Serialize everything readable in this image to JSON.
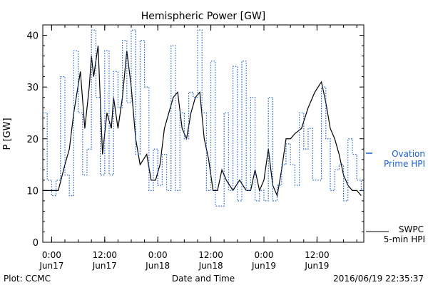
{
  "chart_data": {
    "type": "line",
    "title": "Hemispheric Power [GW]",
    "xlabel": "Date and Time",
    "ylabel": "P [GW]",
    "xlim": [
      "2016-06-16T22:00",
      "2016-06-19T22:35"
    ],
    "ylim": [
      0,
      42
    ],
    "y_ticks": [
      0,
      10,
      20,
      30,
      40
    ],
    "x_ticks": [
      {
        "t": "2016-06-17T00:00",
        "time": "0:00",
        "date": "Jun17"
      },
      {
        "t": "2016-06-17T12:00",
        "time": "12:00",
        "date": "Jun17"
      },
      {
        "t": "2016-06-18T00:00",
        "time": "0:00",
        "date": "Jun18"
      },
      {
        "t": "2016-06-18T12:00",
        "time": "12:00",
        "date": "Jun18"
      },
      {
        "t": "2016-06-19T00:00",
        "time": "0:00",
        "date": "Jun19"
      },
      {
        "t": "2016-06-19T12:00",
        "time": "12:00",
        "date": "Jun19"
      }
    ],
    "grid": false,
    "series": [
      {
        "name": "SWPC 5-min HPI",
        "legend_lines": [
          "SWPC",
          "5-min HPI"
        ],
        "color": "#000000",
        "style": "solid",
        "x": [
          "2016-06-16T22:00",
          "2016-06-16T23:00",
          "2016-06-17T00:00",
          "2016-06-17T01:30",
          "2016-06-17T03:00",
          "2016-06-17T04:00",
          "2016-06-17T05:00",
          "2016-06-17T06:30",
          "2016-06-17T07:30",
          "2016-06-17T08:30",
          "2016-06-17T09:00",
          "2016-06-17T09:30",
          "2016-06-17T10:30",
          "2016-06-17T11:30",
          "2016-06-17T12:30",
          "2016-06-17T13:30",
          "2016-06-17T14:00",
          "2016-06-17T15:00",
          "2016-06-17T16:00",
          "2016-06-17T17:00",
          "2016-06-17T18:00",
          "2016-06-17T19:00",
          "2016-06-17T20:00",
          "2016-06-17T21:30",
          "2016-06-17T22:30",
          "2016-06-17T23:30",
          "2016-06-18T00:30",
          "2016-06-18T01:30",
          "2016-06-18T02:30",
          "2016-06-18T03:30",
          "2016-06-18T04:30",
          "2016-06-18T05:30",
          "2016-06-18T06:30",
          "2016-06-18T07:30",
          "2016-06-18T08:30",
          "2016-06-18T09:30",
          "2016-06-18T10:30",
          "2016-06-18T11:30",
          "2016-06-18T12:30",
          "2016-06-18T13:30",
          "2016-06-18T14:30",
          "2016-06-18T15:30",
          "2016-06-18T17:00",
          "2016-06-18T18:30",
          "2016-06-18T20:00",
          "2016-06-18T21:00",
          "2016-06-18T22:00",
          "2016-06-18T23:00",
          "2016-06-19T00:00",
          "2016-06-19T01:00",
          "2016-06-19T02:00",
          "2016-06-19T03:00",
          "2016-06-19T04:00",
          "2016-06-19T05:00",
          "2016-06-19T06:00",
          "2016-06-19T07:00",
          "2016-06-19T08:30",
          "2016-06-19T10:00",
          "2016-06-19T11:30",
          "2016-06-19T13:00",
          "2016-06-19T14:00",
          "2016-06-19T15:00",
          "2016-06-19T16:00",
          "2016-06-19T17:00",
          "2016-06-19T18:00",
          "2016-06-19T19:00",
          "2016-06-19T20:00",
          "2016-06-19T21:00",
          "2016-06-19T22:00"
        ],
        "y": [
          10,
          10,
          10,
          10,
          15,
          18,
          25,
          33,
          22,
          30,
          36,
          32,
          38,
          17,
          25,
          22,
          28,
          22,
          28,
          37,
          30,
          20,
          15,
          17,
          12,
          12,
          15,
          22,
          25,
          28,
          29,
          22,
          20,
          25,
          28,
          29,
          20,
          16,
          10,
          10,
          14,
          12,
          10,
          12,
          10,
          10,
          14,
          10,
          12,
          18,
          11,
          9,
          14,
          20,
          20,
          21,
          22,
          26,
          29,
          31,
          27,
          22,
          20,
          17,
          13,
          11,
          10,
          10,
          9
        ]
      },
      {
        "name": "Ovation Prime HPI",
        "legend_lines": [
          "Ovation",
          "Prime HPI"
        ],
        "color": "#1a5fd0",
        "style": "dotted-step",
        "x": [
          "2016-06-16T22:00",
          "2016-06-16T23:00",
          "2016-06-17T00:00",
          "2016-06-17T01:00",
          "2016-06-17T02:00",
          "2016-06-17T03:00",
          "2016-06-17T04:00",
          "2016-06-17T05:00",
          "2016-06-17T06:00",
          "2016-06-17T07:00",
          "2016-06-17T08:00",
          "2016-06-17T09:00",
          "2016-06-17T10:00",
          "2016-06-17T11:00",
          "2016-06-17T12:00",
          "2016-06-17T13:00",
          "2016-06-17T14:00",
          "2016-06-17T15:00",
          "2016-06-17T16:00",
          "2016-06-17T17:00",
          "2016-06-17T18:00",
          "2016-06-17T19:00",
          "2016-06-17T20:00",
          "2016-06-17T21:00",
          "2016-06-17T22:00",
          "2016-06-17T23:00",
          "2016-06-18T00:00",
          "2016-06-18T01:00",
          "2016-06-18T02:00",
          "2016-06-18T03:00",
          "2016-06-18T04:00",
          "2016-06-18T05:00",
          "2016-06-18T06:00",
          "2016-06-18T07:00",
          "2016-06-18T08:00",
          "2016-06-18T09:00",
          "2016-06-18T10:00",
          "2016-06-18T11:00",
          "2016-06-18T12:00",
          "2016-06-18T13:00",
          "2016-06-18T14:00",
          "2016-06-18T15:00",
          "2016-06-18T16:00",
          "2016-06-18T17:00",
          "2016-06-18T18:00",
          "2016-06-18T19:00",
          "2016-06-18T20:00",
          "2016-06-18T21:00",
          "2016-06-18T22:00",
          "2016-06-18T23:00",
          "2016-06-19T00:00",
          "2016-06-19T01:00",
          "2016-06-19T02:00",
          "2016-06-19T03:00",
          "2016-06-19T04:00",
          "2016-06-19T05:00",
          "2016-06-19T06:00",
          "2016-06-19T07:00",
          "2016-06-19T08:00",
          "2016-06-19T09:00",
          "2016-06-19T10:00",
          "2016-06-19T11:00",
          "2016-06-19T12:00",
          "2016-06-19T13:00",
          "2016-06-19T14:00",
          "2016-06-19T15:00",
          "2016-06-19T16:00",
          "2016-06-19T17:00",
          "2016-06-19T18:00",
          "2016-06-19T19:00",
          "2016-06-19T20:00",
          "2016-06-19T21:00",
          "2016-06-19T22:00"
        ],
        "y": [
          25,
          12,
          9,
          12,
          32,
          13,
          9,
          37,
          25,
          13,
          18,
          41,
          28,
          13,
          37,
          13,
          33,
          26,
          39,
          27,
          41,
          17,
          39,
          30,
          10,
          18,
          11,
          17,
          10,
          38,
          10,
          25,
          20,
          29,
          28,
          41,
          25,
          10,
          35,
          7,
          7,
          25,
          10,
          34,
          8,
          35,
          10,
          28,
          8,
          10,
          8,
          28,
          8,
          11,
          15,
          19,
          15,
          11,
          25,
          18,
          22,
          12,
          12,
          30,
          20,
          10,
          14,
          15,
          8,
          20,
          17,
          12,
          10
        ]
      }
    ],
    "annotations": {
      "plot_credit": "Plot: CCMC",
      "timestamp": "2016/06/19 22:35:37"
    }
  },
  "colors": {
    "axis": "#000000",
    "swpc": "#000000",
    "ovation": "#1a5fd0",
    "background": "#ffffff"
  }
}
